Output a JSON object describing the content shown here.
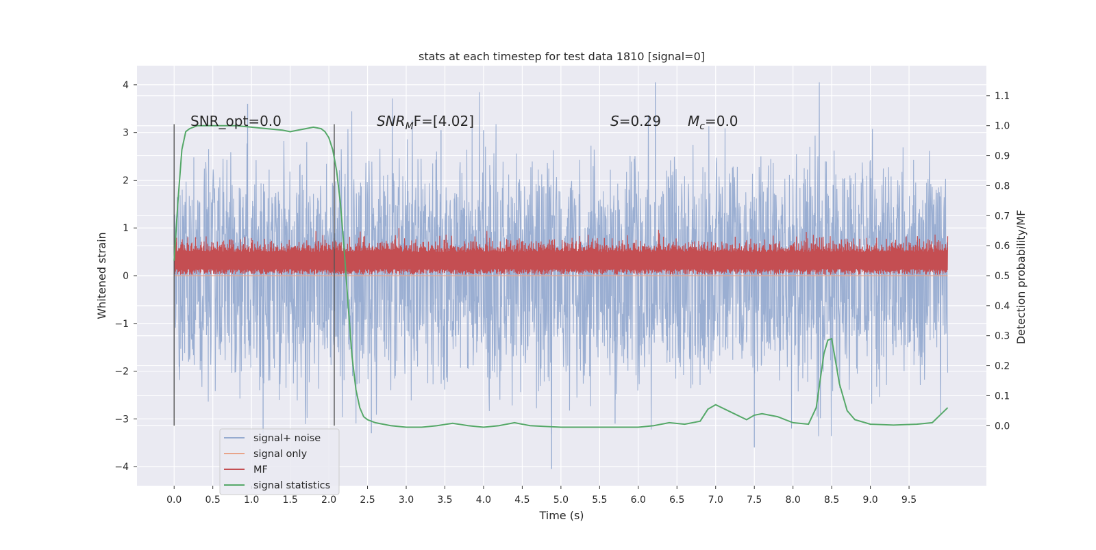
{
  "chart_data": {
    "type": "line",
    "title": "stats at each timestep for test data 1810 [signal=0]",
    "xlabel": "Time (s)",
    "ylabel": "Whitened strain",
    "y2label": "Detection probability/MF",
    "xlim": [
      -0.48,
      10.5
    ],
    "ylim": [
      -4.4,
      4.4
    ],
    "y2lim": [
      -0.2,
      1.2
    ],
    "xticks": [
      "0.0",
      "0.5",
      "1.0",
      "1.5",
      "2.0",
      "2.5",
      "3.0",
      "3.5",
      "4.0",
      "4.5",
      "5.0",
      "5.5",
      "6.0",
      "6.5",
      "7.0",
      "7.5",
      "8.0",
      "8.5",
      "9.0",
      "9.5"
    ],
    "yticks": [
      "−4",
      "−3",
      "−2",
      "−1",
      "0",
      "1",
      "2",
      "3",
      "4"
    ],
    "y2ticks": [
      "0.0",
      "0.1",
      "0.2",
      "0.3",
      "0.4",
      "0.5",
      "0.6",
      "0.7",
      "0.8",
      "0.9",
      "1.0",
      "1.1"
    ],
    "grid": true,
    "legend_position": "lower-left",
    "annotations": {
      "snr_opt": "SNR_opt=0.0",
      "snr_mf_sym": "SNR",
      "snr_mf_sub": "M",
      "snr_mf_rest": "F=[4.02]",
      "s_sym": "S",
      "s_rest": "=0.29",
      "mc_sym": "M",
      "mc_sub": "c",
      "mc_rest": "=0.0"
    },
    "series": [
      {
        "name": "signal+ noise",
        "color": "#96abd0",
        "axis": "left",
        "kind": "dense noise, approx. range -4.0 to 4.0, typical -1.5 to 2.5",
        "value_range": [
          -4.0,
          4.05
        ]
      },
      {
        "name": "signal only",
        "color": "#e8a48a",
        "axis": "left",
        "kind": "flat at 0"
      },
      {
        "name": "MF",
        "color": "#c44e52",
        "axis": "left",
        "kind": "dense band approx. 0 to 0.8",
        "value_range": [
          0.0,
          1.0
        ]
      },
      {
        "name": "signal statistics",
        "color": "#55a868",
        "axis": "right",
        "x": [
          0.0,
          0.05,
          0.1,
          0.15,
          0.2,
          0.3,
          0.5,
          0.8,
          1.0,
          1.2,
          1.4,
          1.5,
          1.6,
          1.7,
          1.8,
          1.9,
          1.95,
          2.0,
          2.05,
          2.1,
          2.15,
          2.2,
          2.25,
          2.3,
          2.35,
          2.4,
          2.45,
          2.5,
          2.6,
          2.8,
          3.0,
          3.2,
          3.4,
          3.6,
          3.8,
          4.0,
          4.2,
          4.4,
          4.6,
          5.0,
          5.5,
          6.0,
          6.2,
          6.4,
          6.6,
          6.8,
          6.9,
          7.0,
          7.2,
          7.4,
          7.5,
          7.6,
          7.8,
          8.0,
          8.2,
          8.3,
          8.4,
          8.45,
          8.5,
          8.6,
          8.7,
          8.8,
          9.0,
          9.3,
          9.6,
          9.8,
          9.9,
          10.0
        ],
        "values": [
          0.55,
          0.75,
          0.92,
          0.98,
          0.99,
          1.0,
          1.0,
          1.0,
          0.995,
          0.99,
          0.985,
          0.98,
          0.985,
          0.99,
          0.995,
          0.99,
          0.98,
          0.96,
          0.92,
          0.85,
          0.74,
          0.58,
          0.4,
          0.23,
          0.12,
          0.06,
          0.03,
          0.02,
          0.01,
          0.0,
          -0.005,
          -0.005,
          0.0,
          0.008,
          0.0,
          -0.005,
          0.0,
          0.01,
          0.0,
          -0.005,
          -0.005,
          -0.005,
          0.0,
          0.01,
          0.005,
          0.015,
          0.055,
          0.07,
          0.045,
          0.02,
          0.035,
          0.04,
          0.03,
          0.01,
          0.005,
          0.06,
          0.24,
          0.285,
          0.29,
          0.14,
          0.05,
          0.02,
          0.005,
          0.002,
          0.005,
          0.01,
          0.035,
          0.06
        ]
      }
    ]
  }
}
